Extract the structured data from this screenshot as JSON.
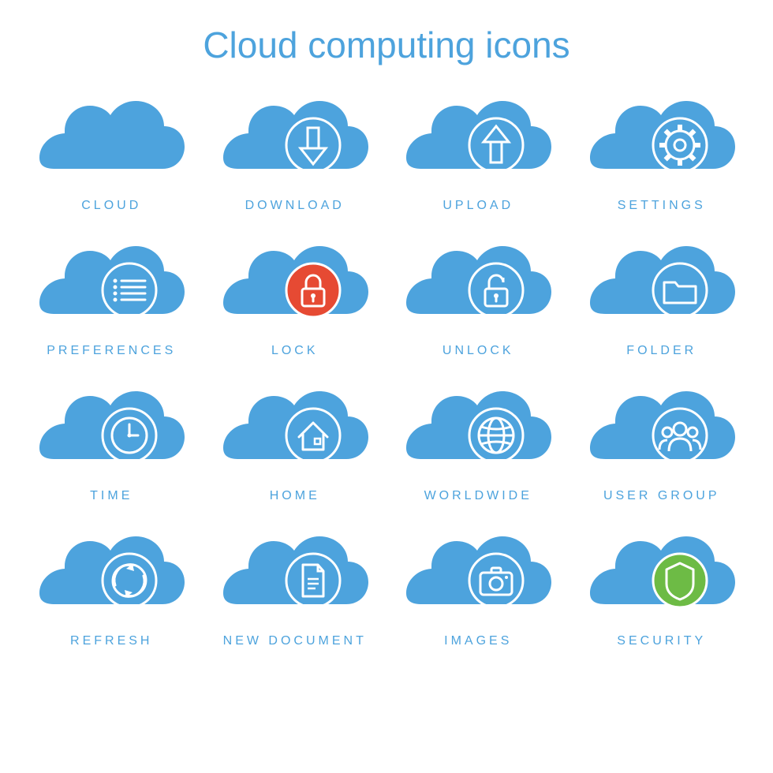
{
  "title": "Cloud computing icons",
  "colors": {
    "cloud": "#4da3dd",
    "title": "#4da3dd",
    "label": "#4da3dd",
    "outline": "#ffffff",
    "lock_badge": "#e64a33",
    "security_badge": "#6dbb45",
    "background": "#ffffff"
  },
  "stroke_width": 3,
  "grid": {
    "rows": 4,
    "cols": 4
  },
  "icons": [
    {
      "id": "cloud",
      "label": "CLOUD",
      "glyph": "none"
    },
    {
      "id": "download",
      "label": "DOWNLOAD",
      "glyph": "arrow-down"
    },
    {
      "id": "upload",
      "label": "UPLOAD",
      "glyph": "arrow-up"
    },
    {
      "id": "settings",
      "label": "SETTINGS",
      "glyph": "gear"
    },
    {
      "id": "preferences",
      "label": "PREFERENCES",
      "glyph": "list"
    },
    {
      "id": "lock",
      "label": "LOCK",
      "glyph": "lock",
      "badge_fill": "#e64a33"
    },
    {
      "id": "unlock",
      "label": "UNLOCK",
      "glyph": "unlock"
    },
    {
      "id": "folder",
      "label": "FOLDER",
      "glyph": "folder"
    },
    {
      "id": "time",
      "label": "TIME",
      "glyph": "clock"
    },
    {
      "id": "home",
      "label": "HOME",
      "glyph": "house"
    },
    {
      "id": "worldwide",
      "label": "WORLDWIDE",
      "glyph": "globe"
    },
    {
      "id": "user-group",
      "label": "USER GROUP",
      "glyph": "users"
    },
    {
      "id": "refresh",
      "label": "REFRESH",
      "glyph": "refresh"
    },
    {
      "id": "new-document",
      "label": "NEW DOCUMENT",
      "glyph": "document"
    },
    {
      "id": "images",
      "label": "IMAGES",
      "glyph": "camera"
    },
    {
      "id": "security",
      "label": "SECURITY",
      "glyph": "shield",
      "badge_fill": "#6dbb45"
    }
  ]
}
